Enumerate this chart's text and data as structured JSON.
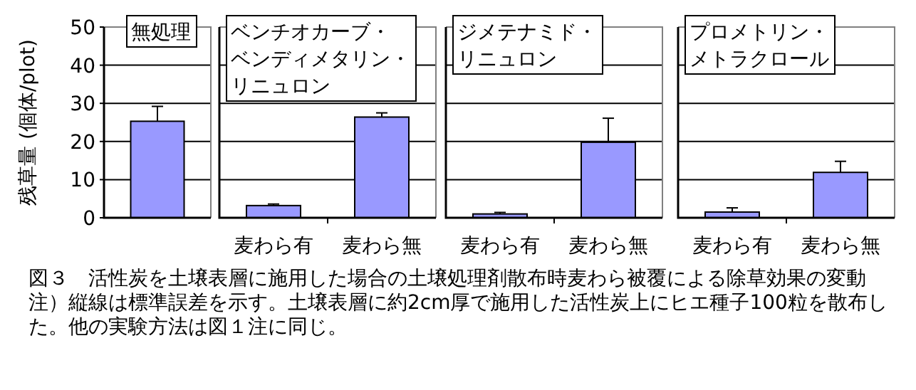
{
  "chart_data": [
    {
      "type": "bar",
      "title": "無処理",
      "ylabel": "残草量 (個体/plot)",
      "categories": [
        null
      ],
      "values": [
        25.3
      ],
      "errors": [
        [
          25.3,
          29.2
        ]
      ],
      "color": "#9999ff",
      "ylim": [
        0,
        50
      ],
      "yticks": [
        0,
        10,
        20,
        30,
        40,
        50
      ],
      "grid": "y",
      "tick_labels": "y",
      "annotations": [
        "図３　活性炭を土壌表層に施用した場合の土壌処理剤散布時麦わら被覆による除草効果の変動",
        "注）縦線は標準誤差を示す。土壌表層に約2cm厚で施用した活性炭上にヒエ種子100粒を散布した。他の実験方法は図１注に同じ。"
      ]
    },
    {
      "type": "bar",
      "title": "ベンチオカーブ・ベンディメタリン・リニュロン",
      "categories": [
        "麦わら有",
        "麦わら無"
      ],
      "values": [
        3.2,
        26.4
      ],
      "errors": [
        [
          3.2,
          3.6
        ],
        [
          26.4,
          27.5
        ]
      ],
      "color": "#9999ff",
      "ylim": [
        0,
        50
      ],
      "yticks": [
        0,
        10,
        20,
        30,
        40,
        50
      ],
      "grid": "y",
      "tick_labels": "x"
    },
    {
      "type": "bar",
      "title": "ジメテナミド・リニュロン",
      "categories": [
        "麦わら有",
        "麦わら無"
      ],
      "values": [
        1.0,
        19.8
      ],
      "errors": [
        [
          1.0,
          1.4
        ],
        [
          19.8,
          26.1
        ]
      ],
      "color": "#9999ff",
      "ylim": [
        0,
        50
      ],
      "yticks": [
        0,
        10,
        20,
        30,
        40,
        50
      ],
      "grid": "y",
      "tick_labels": "x"
    },
    {
      "type": "bar",
      "title": "プロメトリン・メトラクロール",
      "categories": [
        "麦わら有",
        "麦わら無"
      ],
      "values": [
        1.5,
        11.9
      ],
      "errors": [
        [
          1.5,
          2.6
        ],
        [
          11.9,
          14.8
        ]
      ],
      "color": "#9999ff",
      "ylim": [
        0,
        50
      ],
      "yticks": [
        0,
        10,
        20,
        30,
        40,
        50
      ],
      "grid": "y",
      "tick_labels": "x"
    }
  ]
}
